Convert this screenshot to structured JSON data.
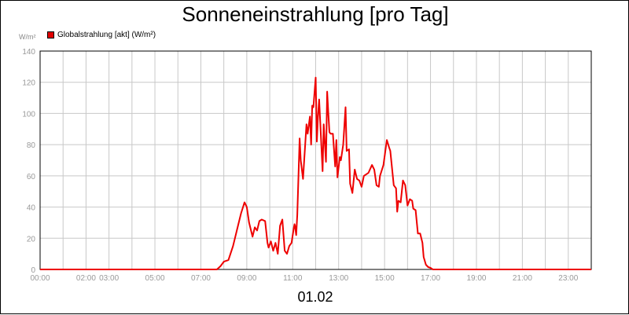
{
  "page": {
    "title": "Sonneneinstrahlung [pro Tag]",
    "date": "01.02"
  },
  "colors": {
    "series": "#ee0000",
    "grid": "#c8c8c8",
    "axis_text": "#999999"
  },
  "chart_data": {
    "type": "line",
    "title": "Sonneneinstrahlung [pro Tag]",
    "y_unit": "W/m²",
    "ylim": [
      0,
      140
    ],
    "xlim": [
      0,
      24
    ],
    "y_ticks": [
      0,
      20,
      40,
      60,
      80,
      100,
      120,
      140
    ],
    "x_ticks": [
      {
        "x": 0,
        "label": "00:00"
      },
      {
        "x": 2,
        "label": "02:00"
      },
      {
        "x": 3,
        "label": "03:00"
      },
      {
        "x": 5,
        "label": "05:00"
      },
      {
        "x": 7,
        "label": "07:00"
      },
      {
        "x": 9,
        "label": "09:00"
      },
      {
        "x": 11,
        "label": "11:00"
      },
      {
        "x": 13,
        "label": "13:00"
      },
      {
        "x": 15,
        "label": "15:00"
      },
      {
        "x": 17,
        "label": "17:00"
      },
      {
        "x": 19,
        "label": "19:00"
      },
      {
        "x": 21,
        "label": "21:00"
      },
      {
        "x": 23,
        "label": "23:00"
      }
    ],
    "grid": true,
    "legend": "top-left",
    "series": [
      {
        "name": "Globalstrahlung [akt] (W/m²)",
        "x": [
          0,
          7.7,
          7.85,
          8.0,
          8.2,
          8.4,
          8.6,
          8.75,
          8.9,
          9.0,
          9.1,
          9.25,
          9.35,
          9.45,
          9.55,
          9.65,
          9.8,
          9.9,
          9.95,
          10.05,
          10.15,
          10.25,
          10.35,
          10.45,
          10.55,
          10.65,
          10.75,
          10.85,
          10.95,
          11.05,
          11.08,
          11.1,
          11.15,
          11.2,
          11.3,
          11.35,
          11.45,
          11.5,
          11.6,
          11.65,
          11.75,
          11.8,
          11.85,
          11.9,
          12.0,
          12.05,
          12.1,
          12.15,
          12.3,
          12.35,
          12.45,
          12.5,
          12.55,
          12.6,
          12.65,
          12.75,
          12.85,
          12.9,
          12.95,
          13.05,
          13.1,
          13.2,
          13.3,
          13.35,
          13.45,
          13.5,
          13.6,
          13.7,
          13.8,
          13.9,
          14.0,
          14.1,
          14.2,
          14.3,
          14.45,
          14.55,
          14.65,
          14.75,
          14.8,
          14.95,
          15.1,
          15.2,
          15.25,
          15.4,
          15.5,
          15.55,
          15.6,
          15.7,
          15.8,
          15.9,
          16.0,
          16.1,
          16.2,
          16.25,
          16.35,
          16.45,
          16.55,
          16.65,
          16.7,
          16.8,
          16.9,
          17.0,
          17.1,
          17.3,
          17.6,
          24
        ],
        "values": [
          0,
          0,
          2,
          5,
          6,
          15,
          27,
          36,
          43,
          40,
          30,
          21,
          27,
          25,
          31,
          32,
          31,
          17,
          14,
          18,
          12,
          17,
          10,
          28,
          32,
          12,
          10,
          15,
          17,
          27,
          29,
          28,
          22,
          35,
          84,
          70,
          58,
          70,
          93,
          87,
          98,
          80,
          105,
          104,
          123,
          82,
          98,
          109,
          63,
          93,
          69,
          114,
          100,
          88,
          87,
          87,
          66,
          83,
          59,
          72,
          70,
          80,
          104,
          76,
          77,
          55,
          49,
          64,
          58,
          57,
          53,
          60,
          61,
          62,
          67,
          64,
          54,
          53,
          60,
          67,
          83,
          78,
          76,
          54,
          52,
          37,
          44,
          43,
          57,
          54,
          41,
          45,
          44,
          39,
          38,
          23,
          23,
          17,
          8,
          3,
          1.5,
          1,
          0,
          0,
          0,
          0
        ]
      }
    ]
  }
}
